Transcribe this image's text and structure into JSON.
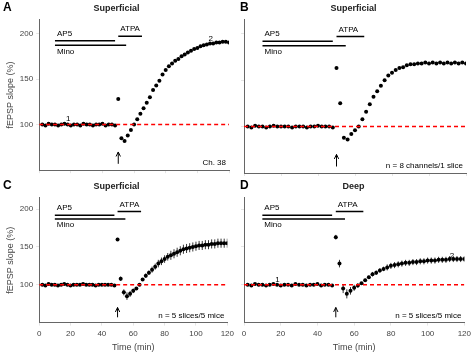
{
  "chart_data": [
    {
      "type": "scatter",
      "title": "Superficial",
      "ylabel": "fEPSP slope (%)",
      "xlim": [
        0,
        120
      ],
      "xticks": [
        0,
        20,
        40,
        60,
        80,
        100,
        120
      ],
      "ylim": [
        50,
        215
      ],
      "yticks": [
        100,
        150,
        200
      ],
      "grid": false,
      "tick_labels": "y",
      "series": [
        {
          "type": "line",
          "line_style": "dashed",
          "color": "#FF0000",
          "x": [
            0,
            120
          ],
          "values": [
            100,
            100
          ]
        },
        {
          "type": "scatter",
          "marker": "circle",
          "color": "#000000",
          "x": [
            2,
            4,
            6,
            8,
            10,
            12,
            14,
            16,
            18,
            20,
            22,
            24,
            26,
            28,
            30,
            32,
            34,
            36,
            38,
            40,
            42,
            44,
            46,
            48,
            50,
            52,
            54,
            56,
            58,
            60,
            62,
            64,
            66,
            68,
            70,
            72,
            74,
            76,
            78,
            80,
            82,
            84,
            86,
            88,
            90,
            92,
            94,
            96,
            98,
            100,
            102,
            104,
            106,
            108,
            110,
            112,
            114,
            116,
            118,
            120
          ],
          "values": [
            100,
            99,
            101,
            100,
            100,
            99,
            100,
            101,
            100,
            99,
            100,
            100,
            99,
            101,
            100,
            100,
            99,
            100,
            100,
            101,
            99,
            100,
            100,
            99,
            128,
            85,
            82,
            88,
            94,
            100,
            106,
            112,
            118,
            124,
            130,
            138,
            143,
            148,
            155,
            160,
            164,
            167,
            170,
            172,
            175,
            177,
            179,
            181,
            183,
            184,
            186,
            187,
            188,
            189,
            189,
            190,
            190,
            191,
            191,
            190
          ]
        },
        {
          "name": "AP5",
          "type": "line",
          "line_style": "solid",
          "color": "#000000",
          "x": [
            10,
            48
          ],
          "values": [
            192,
            192
          ]
        },
        {
          "name": "ATPA",
          "type": "line",
          "line_style": "solid",
          "color": "#000000",
          "x": [
            50,
            65
          ],
          "values": [
            197,
            197
          ]
        },
        {
          "name": "Mino",
          "type": "line",
          "line_style": "solid",
          "color": "#000000",
          "x": [
            10,
            55
          ],
          "values": [
            187,
            187
          ]
        },
        {
          "type": "arrow",
          "color": "#000000",
          "x": [
            50,
            50
          ],
          "values": [
            57,
            70
          ]
        }
      ],
      "annotations": [
        {
          "text": "A"
        },
        {
          "text": "Ch. 38"
        },
        {
          "text": "1",
          "x": 17,
          "y": 104
        },
        {
          "text": "2",
          "x": 107,
          "y": 192
        }
      ]
    },
    {
      "type": "scatter",
      "title": "Superficial",
      "xlim": [
        0,
        120
      ],
      "xticks": [
        0,
        20,
        40,
        60,
        80,
        100,
        120
      ],
      "ylim": [
        50,
        215
      ],
      "yticks": [
        100,
        150,
        200
      ],
      "grid": false,
      "tick_labels": false,
      "series": [
        {
          "type": "line",
          "line_style": "dashed",
          "color": "#FF0000",
          "x": [
            0,
            120
          ],
          "values": [
            100,
            100
          ]
        },
        {
          "type": "scatter",
          "marker": "circle",
          "color": "#000000",
          "x": [
            2,
            4,
            6,
            8,
            10,
            12,
            14,
            16,
            18,
            20,
            22,
            24,
            26,
            28,
            30,
            32,
            34,
            36,
            38,
            40,
            42,
            44,
            46,
            48,
            50,
            52,
            54,
            56,
            58,
            60,
            62,
            64,
            66,
            68,
            70,
            72,
            74,
            76,
            78,
            80,
            82,
            84,
            86,
            88,
            90,
            92,
            94,
            96,
            98,
            100,
            102,
            104,
            106,
            108,
            110,
            112,
            114,
            116,
            118,
            120
          ],
          "values": [
            100,
            99,
            101,
            100,
            100,
            99,
            100,
            101,
            100,
            100,
            100,
            100,
            99,
            100,
            100,
            100,
            99,
            100,
            100,
            101,
            100,
            100,
            100,
            99,
            163,
            125,
            88,
            86,
            92,
            96,
            100,
            108,
            116,
            124,
            132,
            138,
            144,
            150,
            155,
            158,
            161,
            163,
            164,
            166,
            167,
            167,
            168,
            168,
            169,
            168,
            169,
            168,
            169,
            168,
            169,
            168,
            169,
            168,
            169,
            168
          ]
        },
        {
          "name": "AP5",
          "type": "line",
          "line_style": "solid",
          "color": "#000000",
          "x": [
            10,
            48
          ],
          "values": [
            192,
            192
          ]
        },
        {
          "name": "ATPA",
          "type": "line",
          "line_style": "solid",
          "color": "#000000",
          "x": [
            50,
            65
          ],
          "values": [
            197,
            197
          ]
        },
        {
          "name": "Mino",
          "type": "line",
          "line_style": "solid",
          "color": "#000000",
          "x": [
            10,
            55
          ],
          "values": [
            187,
            187
          ]
        },
        {
          "type": "arrow",
          "color": "#000000",
          "x": [
            50,
            50
          ],
          "values": [
            57,
            70
          ]
        }
      ],
      "annotations": [
        {
          "text": "B"
        },
        {
          "text": "n = 8 channels/1 slice"
        }
      ]
    },
    {
      "type": "scatter",
      "title": "Superficial",
      "xlabel": "Time (min)",
      "ylabel": "fEPSP slope (%)",
      "xlim": [
        0,
        120
      ],
      "xticks": [
        0,
        20,
        40,
        60,
        80,
        100,
        120
      ],
      "ylim": [
        50,
        215
      ],
      "yticks": [
        100,
        150,
        200
      ],
      "grid": false,
      "series": [
        {
          "type": "line",
          "line_style": "dashed",
          "color": "#FF0000",
          "x": [
            0,
            120
          ],
          "values": [
            100,
            100
          ]
        },
        {
          "type": "scatter",
          "marker": "circle",
          "color": "#000000",
          "x": [
            2,
            4,
            6,
            8,
            10,
            12,
            14,
            16,
            18,
            20,
            22,
            24,
            26,
            28,
            30,
            32,
            34,
            36,
            38,
            40,
            42,
            44,
            46,
            48,
            50,
            52,
            54,
            56,
            58,
            60,
            62,
            64,
            66,
            68,
            70,
            72,
            74,
            76,
            78,
            80,
            82,
            84,
            86,
            88,
            90,
            92,
            94,
            96,
            98,
            100,
            102,
            104,
            106,
            108,
            110,
            112,
            114,
            116,
            118,
            120
          ],
          "values": [
            100,
            99,
            101,
            100,
            100,
            99,
            100,
            101,
            100,
            99,
            100,
            100,
            100,
            101,
            100,
            100,
            100,
            99,
            100,
            100,
            100,
            100,
            100,
            99,
            160,
            108,
            90,
            85,
            88,
            92,
            95,
            100,
            107,
            112,
            116,
            120,
            124,
            128,
            131,
            134,
            137,
            139,
            141,
            143,
            145,
            147,
            148,
            149,
            150,
            151,
            152,
            152,
            153,
            153,
            154,
            154,
            155,
            155,
            155,
            155
          ],
          "errors": [
            1,
            1,
            1,
            1,
            1,
            1,
            1,
            1,
            1,
            1,
            1,
            1,
            1,
            1,
            1,
            1,
            1,
            1,
            1,
            1,
            1,
            1,
            1,
            1,
            2,
            3,
            4,
            5,
            4,
            3,
            2,
            1,
            2,
            3,
            3,
            4,
            4,
            5,
            5,
            5,
            5,
            6,
            6,
            6,
            6,
            6,
            6,
            6,
            6,
            6,
            6,
            6,
            6,
            6,
            6,
            6,
            6,
            6,
            6,
            6
          ]
        },
        {
          "name": "AP5",
          "type": "line",
          "line_style": "solid",
          "color": "#000000",
          "x": [
            10,
            48
          ],
          "values": [
            192,
            192
          ]
        },
        {
          "name": "ATPA",
          "type": "line",
          "line_style": "solid",
          "color": "#000000",
          "x": [
            50,
            65
          ],
          "values": [
            197,
            197
          ]
        },
        {
          "name": "Mino",
          "type": "line",
          "line_style": "solid",
          "color": "#000000",
          "x": [
            10,
            55
          ],
          "values": [
            187,
            187
          ]
        },
        {
          "type": "arrow",
          "color": "#000000",
          "x": [
            50,
            50
          ],
          "values": [
            57,
            70
          ]
        }
      ],
      "annotations": [
        {
          "text": "C"
        },
        {
          "text": "n = 5 slices/5 mice"
        }
      ]
    },
    {
      "type": "scatter",
      "title": "Deep",
      "xlabel": "Time (min)",
      "xlim": [
        0,
        120
      ],
      "xticks": [
        0,
        20,
        40,
        60,
        80,
        100,
        120
      ],
      "ylim": [
        50,
        215
      ],
      "yticks": [
        100,
        150,
        200
      ],
      "grid": false,
      "tick_labels": "x",
      "series": [
        {
          "type": "line",
          "line_style": "dashed",
          "color": "#FF0000",
          "x": [
            0,
            120
          ],
          "values": [
            100,
            100
          ]
        },
        {
          "type": "scatter",
          "marker": "circle",
          "color": "#000000",
          "x": [
            2,
            4,
            6,
            8,
            10,
            12,
            14,
            16,
            18,
            20,
            22,
            24,
            26,
            28,
            30,
            32,
            34,
            36,
            38,
            40,
            42,
            44,
            46,
            48,
            50,
            52,
            54,
            56,
            58,
            60,
            62,
            64,
            66,
            68,
            70,
            72,
            74,
            76,
            78,
            80,
            82,
            84,
            86,
            88,
            90,
            92,
            94,
            96,
            98,
            100,
            102,
            104,
            106,
            108,
            110,
            112,
            114,
            116,
            118,
            120
          ],
          "values": [
            100,
            99,
            101,
            100,
            100,
            99,
            100,
            101,
            100,
            99,
            100,
            100,
            99,
            101,
            100,
            100,
            99,
            100,
            100,
            101,
            99,
            100,
            100,
            99,
            163,
            128,
            95,
            88,
            92,
            96,
            99,
            102,
            106,
            110,
            114,
            116,
            119,
            121,
            123,
            125,
            126,
            127,
            128,
            129,
            129,
            130,
            130,
            131,
            131,
            132,
            132,
            132,
            133,
            133,
            133,
            134,
            134,
            134,
            134,
            134
          ],
          "errors": [
            1,
            1,
            1,
            1,
            1,
            1,
            1,
            1,
            1,
            1,
            1,
            1,
            1,
            1,
            1,
            1,
            1,
            1,
            1,
            1,
            1,
            1,
            1,
            1,
            3,
            5,
            6,
            6,
            5,
            4,
            3,
            1,
            2,
            2,
            3,
            3,
            3,
            3,
            4,
            4,
            4,
            4,
            4,
            4,
            4,
            4,
            4,
            4,
            4,
            4,
            4,
            4,
            4,
            4,
            4,
            4,
            4,
            4,
            4,
            4
          ]
        },
        {
          "name": "AP5",
          "type": "line",
          "line_style": "solid",
          "color": "#000000",
          "x": [
            10,
            48
          ],
          "values": [
            192,
            192
          ]
        },
        {
          "name": "ATPA",
          "type": "line",
          "line_style": "solid",
          "color": "#000000",
          "x": [
            50,
            65
          ],
          "values": [
            197,
            197
          ]
        },
        {
          "name": "Mino",
          "type": "line",
          "line_style": "solid",
          "color": "#000000",
          "x": [
            10,
            55
          ],
          "values": [
            187,
            187
          ]
        },
        {
          "type": "arrow",
          "color": "#000000",
          "x": [
            50,
            50
          ],
          "values": [
            57,
            70
          ]
        }
      ],
      "annotations": [
        {
          "text": "D"
        },
        {
          "text": "n = 5 slices/5 mice"
        },
        {
          "text": "1",
          "x": 17,
          "y": 104
        },
        {
          "text": "2",
          "x": 112,
          "y": 136
        }
      ]
    }
  ]
}
